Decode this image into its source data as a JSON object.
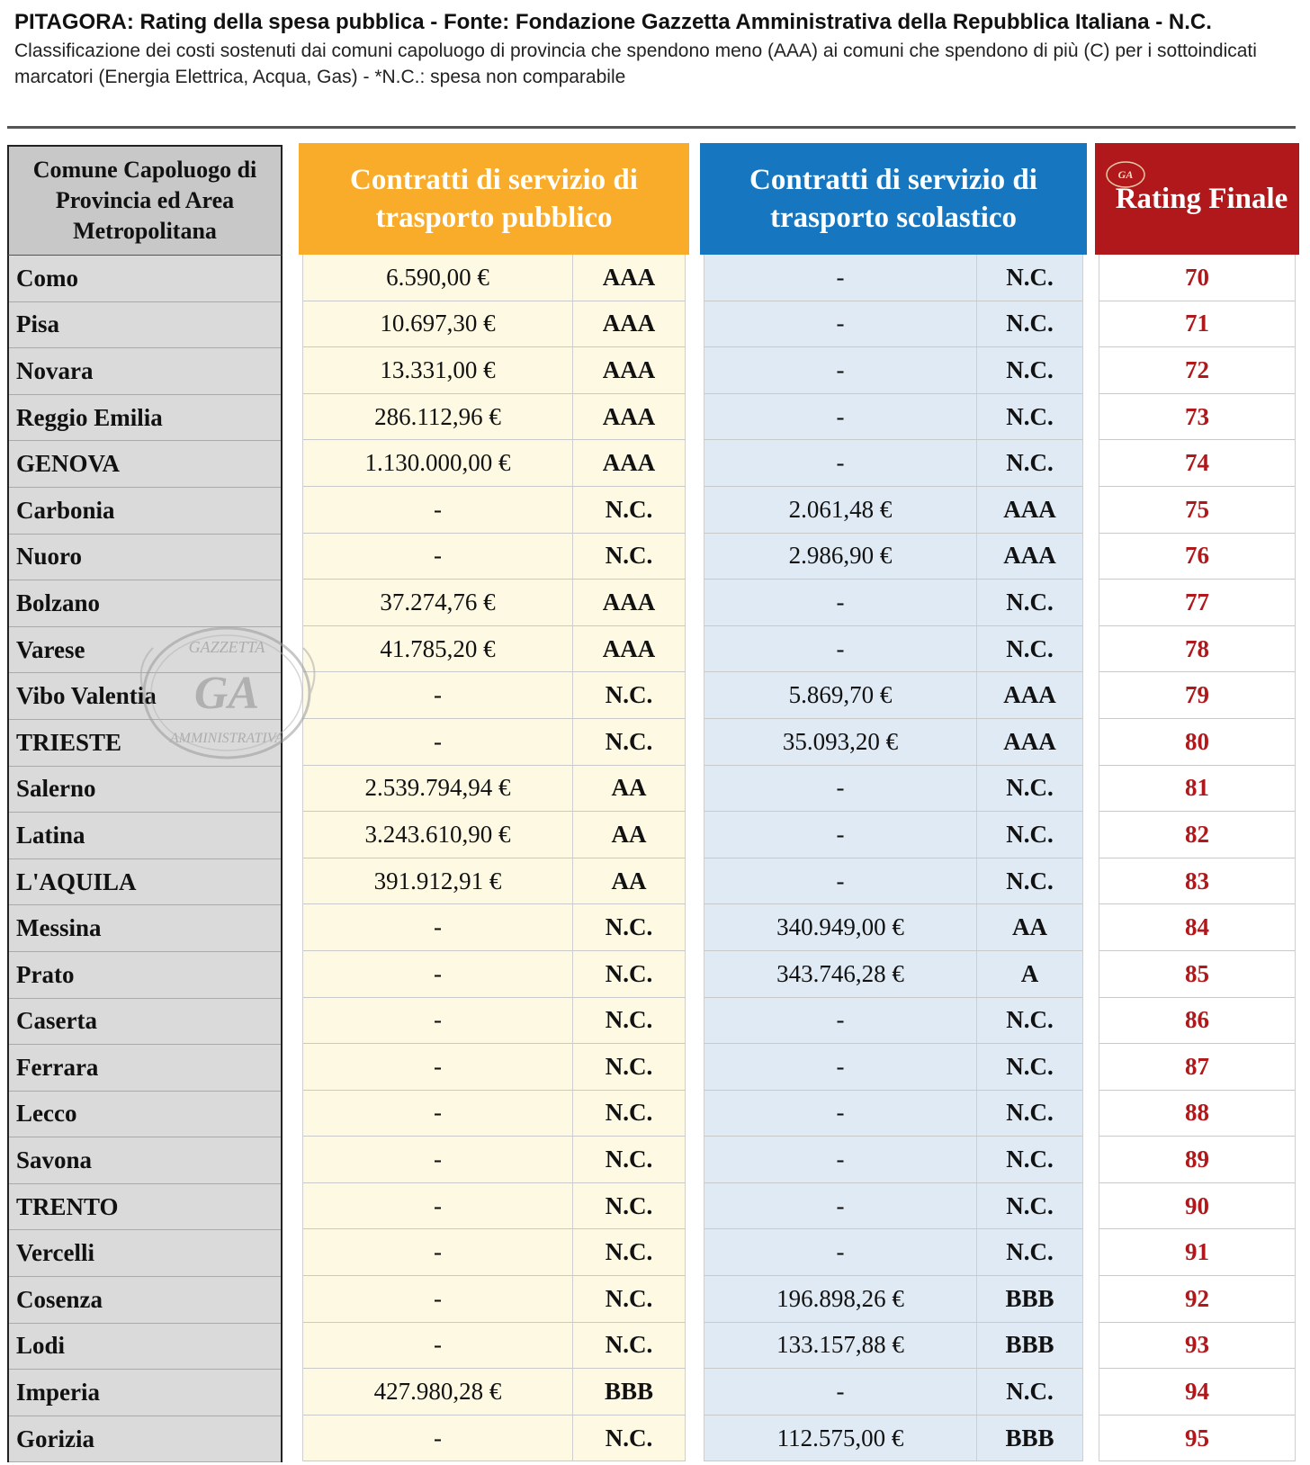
{
  "header": {
    "title": "PITAGORA: Rating della spesa pubblica - Fonte: Fondazione Gazzetta Amministrativa della Repubblica Italiana - N.C.",
    "subtitle": "Classificazione dei costi sostenuti dai comuni capoluogo di provincia che spendono meno (AAA) ai comuni che spendono di più (C) per i sottoindicati marcatori (Energia Elettrica, Acqua, Gas) - *N.C.: spesa non comparabile"
  },
  "columns": {
    "city": "Comune Capoluogo di Provincia ed Area Metropolitana",
    "public_transport": "Contratti di servizio di trasporto pubblico",
    "school_transport": "Contratti di servizio di trasporto scolastico",
    "rating": "Rating Finale"
  },
  "logo": {
    "badge_text": "GA",
    "watermark_text": "GA",
    "watermark_top": "GAZZETTA",
    "watermark_bottom": "AMMINISTRATIVA"
  },
  "colors": {
    "public": "#f9ab2a",
    "school": "#1677c0",
    "rating": "#b0181b",
    "city_header": "#c8c8c8"
  },
  "rows": [
    {
      "city": "Como",
      "tp_amount": "6.590,00 €",
      "tp_grade": "AAA",
      "ts_amount": "-",
      "ts_grade": "N.C.",
      "rating": "70"
    },
    {
      "city": "Pisa",
      "tp_amount": "10.697,30 €",
      "tp_grade": "AAA",
      "ts_amount": "-",
      "ts_grade": "N.C.",
      "rating": "71"
    },
    {
      "city": "Novara",
      "tp_amount": "13.331,00 €",
      "tp_grade": "AAA",
      "ts_amount": "-",
      "ts_grade": "N.C.",
      "rating": "72"
    },
    {
      "city": "Reggio Emilia",
      "tp_amount": "286.112,96 €",
      "tp_grade": "AAA",
      "ts_amount": "-",
      "ts_grade": "N.C.",
      "rating": "73"
    },
    {
      "city": "GENOVA",
      "tp_amount": "1.130.000,00 €",
      "tp_grade": "AAA",
      "ts_amount": "-",
      "ts_grade": "N.C.",
      "rating": "74"
    },
    {
      "city": "Carbonia",
      "tp_amount": "-",
      "tp_grade": "N.C.",
      "ts_amount": "2.061,48 €",
      "ts_grade": "AAA",
      "rating": "75"
    },
    {
      "city": "Nuoro",
      "tp_amount": "-",
      "tp_grade": "N.C.",
      "ts_amount": "2.986,90 €",
      "ts_grade": "AAA",
      "rating": "76"
    },
    {
      "city": "Bolzano",
      "tp_amount": "37.274,76 €",
      "tp_grade": "AAA",
      "ts_amount": "-",
      "ts_grade": "N.C.",
      "rating": "77"
    },
    {
      "city": "Varese",
      "tp_amount": "41.785,20 €",
      "tp_grade": "AAA",
      "ts_amount": "-",
      "ts_grade": "N.C.",
      "rating": "78"
    },
    {
      "city": "Vibo Valentia",
      "tp_amount": "-",
      "tp_grade": "N.C.",
      "ts_amount": "5.869,70 €",
      "ts_grade": "AAA",
      "rating": "79"
    },
    {
      "city": "TRIESTE",
      "tp_amount": "-",
      "tp_grade": "N.C.",
      "ts_amount": "35.093,20 €",
      "ts_grade": "AAA",
      "rating": "80"
    },
    {
      "city": "Salerno",
      "tp_amount": "2.539.794,94 €",
      "tp_grade": "AA",
      "ts_amount": "-",
      "ts_grade": "N.C.",
      "rating": "81"
    },
    {
      "city": "Latina",
      "tp_amount": "3.243.610,90 €",
      "tp_grade": "AA",
      "ts_amount": "-",
      "ts_grade": "N.C.",
      "rating": "82"
    },
    {
      "city": "L'AQUILA",
      "tp_amount": "391.912,91 €",
      "tp_grade": "AA",
      "ts_amount": "-",
      "ts_grade": "N.C.",
      "rating": "83"
    },
    {
      "city": "Messina",
      "tp_amount": "-",
      "tp_grade": "N.C.",
      "ts_amount": "340.949,00 €",
      "ts_grade": "AA",
      "rating": "84"
    },
    {
      "city": "Prato",
      "tp_amount": "-",
      "tp_grade": "N.C.",
      "ts_amount": "343.746,28 €",
      "ts_grade": "A",
      "rating": "85"
    },
    {
      "city": "Caserta",
      "tp_amount": "-",
      "tp_grade": "N.C.",
      "ts_amount": "-",
      "ts_grade": "N.C.",
      "rating": "86"
    },
    {
      "city": "Ferrara",
      "tp_amount": "-",
      "tp_grade": "N.C.",
      "ts_amount": "-",
      "ts_grade": "N.C.",
      "rating": "87"
    },
    {
      "city": "Lecco",
      "tp_amount": "-",
      "tp_grade": "N.C.",
      "ts_amount": "-",
      "ts_grade": "N.C.",
      "rating": "88"
    },
    {
      "city": "Savona",
      "tp_amount": "-",
      "tp_grade": "N.C.",
      "ts_amount": "-",
      "ts_grade": "N.C.",
      "rating": "89"
    },
    {
      "city": "TRENTO",
      "tp_amount": "-",
      "tp_grade": "N.C.",
      "ts_amount": "-",
      "ts_grade": "N.C.",
      "rating": "90"
    },
    {
      "city": "Vercelli",
      "tp_amount": "-",
      "tp_grade": "N.C.",
      "ts_amount": "-",
      "ts_grade": "N.C.",
      "rating": "91"
    },
    {
      "city": "Cosenza",
      "tp_amount": "-",
      "tp_grade": "N.C.",
      "ts_amount": "196.898,26 €",
      "ts_grade": "BBB",
      "rating": "92"
    },
    {
      "city": "Lodi",
      "tp_amount": "-",
      "tp_grade": "N.C.",
      "ts_amount": "133.157,88 €",
      "ts_grade": "BBB",
      "rating": "93"
    },
    {
      "city": "Imperia",
      "tp_amount": "427.980,28 €",
      "tp_grade": "BBB",
      "ts_amount": "-",
      "ts_grade": "N.C.",
      "rating": "94"
    },
    {
      "city": "Gorizia",
      "tp_amount": "-",
      "tp_grade": "N.C.",
      "ts_amount": "112.575,00 €",
      "ts_grade": "BBB",
      "rating": "95"
    }
  ]
}
